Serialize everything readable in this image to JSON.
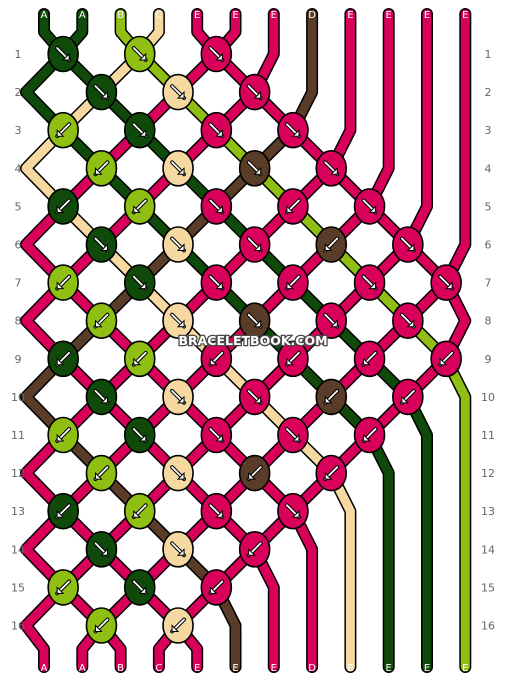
{
  "colors": {
    "A": "#0f4a0a",
    "B": "#8ebf12",
    "C": "#f6d9a1",
    "D": "#5a3d28",
    "E": "#d9005c"
  },
  "watermark": "BRACELETBOOK.COM",
  "strings_top": [
    "A",
    "A",
    "B",
    "C",
    "E",
    "E",
    "E",
    "D",
    "E",
    "E",
    "E",
    "E"
  ],
  "strings_bottom": [
    "A",
    "A",
    "B",
    "C",
    "E",
    "E",
    "E",
    "D",
    "E",
    "E",
    "E",
    "E"
  ],
  "row_numbers": [
    "1",
    "2",
    "3",
    "4",
    "5",
    "6",
    "7",
    "8",
    "9",
    "10",
    "11",
    "12",
    "13",
    "14",
    "15",
    "16"
  ],
  "knot_rows": [
    [
      [
        "A",
        "dr"
      ],
      [
        "B",
        "dr"
      ],
      [
        "E",
        "dr"
      ]
    ],
    [
      [
        "A",
        "dr"
      ],
      [
        "C",
        "dr"
      ],
      [
        "E",
        "dr"
      ]
    ],
    [
      [
        "B",
        "dl"
      ],
      [
        "A",
        "dr"
      ],
      [
        "E",
        "dr"
      ],
      [
        "E",
        "dr"
      ]
    ],
    [
      [
        "B",
        "dl"
      ],
      [
        "C",
        "dr"
      ],
      [
        "D",
        "dr"
      ],
      [
        "E",
        "dr"
      ]
    ],
    [
      [
        "A",
        "dl"
      ],
      [
        "B",
        "dl"
      ],
      [
        "E",
        "dr"
      ],
      [
        "E",
        "dl"
      ],
      [
        "E",
        "dr"
      ]
    ],
    [
      [
        "A",
        "dr"
      ],
      [
        "C",
        "dr"
      ],
      [
        "E",
        "dr"
      ],
      [
        "D",
        "dl"
      ],
      [
        "E",
        "dr"
      ]
    ],
    [
      [
        "B",
        "dl"
      ],
      [
        "A",
        "dr"
      ],
      [
        "E",
        "dr"
      ],
      [
        "E",
        "dl"
      ],
      [
        "E",
        "dr"
      ],
      [
        "E",
        "dr"
      ]
    ],
    [
      [
        "B",
        "dl"
      ],
      [
        "C",
        "dr"
      ],
      [
        "D",
        "dr"
      ],
      [
        "E",
        "dr"
      ],
      [
        "E",
        "dr"
      ]
    ],
    [
      [
        "A",
        "dl"
      ],
      [
        "B",
        "dl"
      ],
      [
        "E",
        "dl"
      ],
      [
        "E",
        "dl"
      ],
      [
        "E",
        "dl"
      ],
      [
        "E",
        "dl"
      ]
    ],
    [
      [
        "A",
        "dr"
      ],
      [
        "C",
        "dr"
      ],
      [
        "E",
        "dr"
      ],
      [
        "D",
        "dl"
      ],
      [
        "E",
        "dl"
      ]
    ],
    [
      [
        "B",
        "dl"
      ],
      [
        "A",
        "dr"
      ],
      [
        "E",
        "dr"
      ],
      [
        "E",
        "dr"
      ],
      [
        "E",
        "dl"
      ]
    ],
    [
      [
        "B",
        "dl"
      ],
      [
        "C",
        "dr"
      ],
      [
        "D",
        "dl"
      ],
      [
        "E",
        "dl"
      ]
    ],
    [
      [
        "A",
        "dl"
      ],
      [
        "B",
        "dl"
      ],
      [
        "E",
        "dr"
      ],
      [
        "E",
        "dr"
      ]
    ],
    [
      [
        "A",
        "dr"
      ],
      [
        "C",
        "dr"
      ],
      [
        "E",
        "dl"
      ]
    ],
    [
      [
        "B",
        "dl"
      ],
      [
        "A",
        "dr"
      ],
      [
        "E",
        "dl"
      ]
    ],
    [
      [
        "B",
        "dl"
      ],
      [
        "C",
        "dl"
      ]
    ]
  ]
}
